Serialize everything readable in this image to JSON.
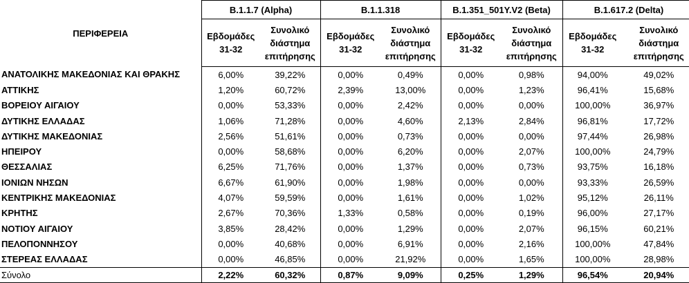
{
  "table": {
    "region_header": "ΠΕΡΙΦΕΡΕΙΑ",
    "groups": [
      "B.1.1.7 (Alpha)",
      "B.1.1.318",
      "B.1.351_501Y.V2 (Beta)",
      "B.1.617.2 (Delta)"
    ],
    "sub_headers": {
      "weeks": "Εβδομάδες 31-32",
      "total": "Συνολικό διάστημα επιτήρησης"
    },
    "rows": [
      {
        "region": "ΑΝΑΤΟΛΙΚΗΣ ΜΑΚΕΔΟΝΙΑΣ ΚΑΙ ΘΡΑΚΗΣ",
        "values": [
          "6,00%",
          "39,22%",
          "0,00%",
          "0,49%",
          "0,00%",
          "0,98%",
          "94,00%",
          "49,02%"
        ]
      },
      {
        "region": "ΑΤΤΙΚΗΣ",
        "values": [
          "1,20%",
          "60,72%",
          "2,39%",
          "13,00%",
          "0,00%",
          "1,23%",
          "96,41%",
          "15,68%"
        ]
      },
      {
        "region": "ΒΟΡΕΙΟΥ ΑΙΓΑΙΟΥ",
        "values": [
          "0,00%",
          "53,33%",
          "0,00%",
          "2,42%",
          "0,00%",
          "0,00%",
          "100,00%",
          "36,97%"
        ]
      },
      {
        "region": "ΔΥΤΙΚΗΣ ΕΛΛΑΔΑΣ",
        "values": [
          "1,06%",
          "71,28%",
          "0,00%",
          "4,60%",
          "2,13%",
          "2,84%",
          "96,81%",
          "17,72%"
        ]
      },
      {
        "region": "ΔΥΤΙΚΗΣ ΜΑΚΕΔΟΝΙΑΣ",
        "values": [
          "2,56%",
          "51,61%",
          "0,00%",
          "0,73%",
          "0,00%",
          "0,00%",
          "97,44%",
          "26,98%"
        ]
      },
      {
        "region": "ΗΠΕΙΡΟΥ",
        "values": [
          "0,00%",
          "58,68%",
          "0,00%",
          "6,20%",
          "0,00%",
          "2,07%",
          "100,00%",
          "24,79%"
        ]
      },
      {
        "region": "ΘΕΣΣΑΛΙΑΣ",
        "values": [
          "6,25%",
          "71,76%",
          "0,00%",
          "1,37%",
          "0,00%",
          "0,73%",
          "93,75%",
          "16,18%"
        ]
      },
      {
        "region": "ΙΟΝΙΩΝ ΝΗΣΩΝ",
        "values": [
          "6,67%",
          "61,90%",
          "0,00%",
          "1,98%",
          "0,00%",
          "0,00%",
          "93,33%",
          "26,59%"
        ]
      },
      {
        "region": "ΚΕΝΤΡΙΚΗΣ ΜΑΚΕΔΟΝΙΑΣ",
        "values": [
          "4,07%",
          "59,59%",
          "0,00%",
          "1,61%",
          "0,00%",
          "1,02%",
          "95,12%",
          "26,11%"
        ]
      },
      {
        "region": "ΚΡΗΤΗΣ",
        "values": [
          "2,67%",
          "70,36%",
          "1,33%",
          "0,58%",
          "0,00%",
          "0,19%",
          "96,00%",
          "27,17%"
        ]
      },
      {
        "region": "ΝΟΤΙΟΥ ΑΙΓΑΙΟΥ",
        "values": [
          "3,85%",
          "28,42%",
          "0,00%",
          "1,29%",
          "0,00%",
          "2,07%",
          "96,15%",
          "60,21%"
        ]
      },
      {
        "region": "ΠΕΛΟΠΟΝΝΗΣΟΥ",
        "values": [
          "0,00%",
          "40,68%",
          "0,00%",
          "6,91%",
          "0,00%",
          "2,16%",
          "100,00%",
          "47,84%"
        ]
      },
      {
        "region": "ΣΤΕΡΕΑΣ ΕΛΛΑΔΑΣ",
        "values": [
          "0,00%",
          "46,85%",
          "0,00%",
          "21,92%",
          "0,00%",
          "1,65%",
          "100,00%",
          "28,98%"
        ]
      }
    ],
    "total": {
      "region": "Σύνολο",
      "values": [
        "2,22%",
        "60,32%",
        "0,87%",
        "9,09%",
        "0,25%",
        "1,29%",
        "96,54%",
        "20,94%"
      ]
    }
  }
}
